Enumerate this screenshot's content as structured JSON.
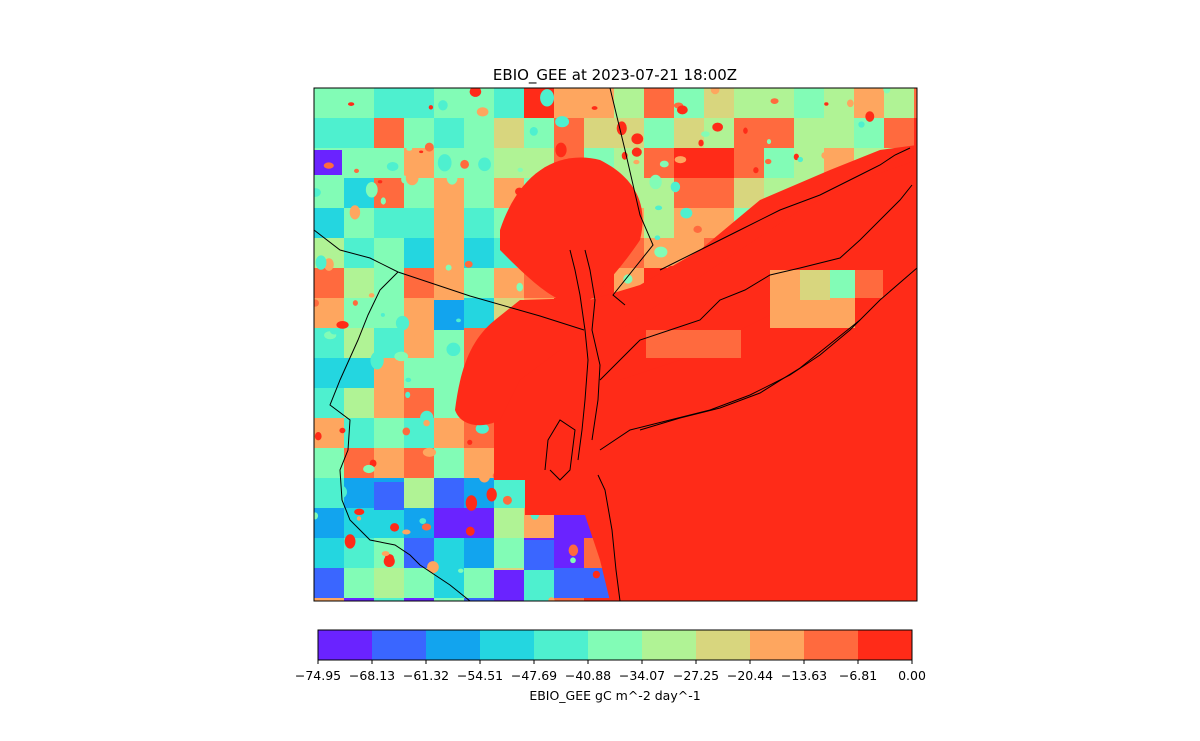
{
  "chart_data": {
    "type": "heatmap",
    "title": "EBIO_GEE at 2023-07-21 18:00Z",
    "colorbar": {
      "label": "EBIO_GEE gC m^-2 day^-1",
      "orientation": "horizontal",
      "placement": "bottom",
      "ticks": [
        "−74.95",
        "−68.13",
        "−61.32",
        "−54.51",
        "−47.69",
        "−40.88",
        "−34.07",
        "−27.25",
        "−20.44",
        "−13.63",
        "−6.81",
        "0.00"
      ],
      "levels": [
        -74.95,
        -68.13,
        -61.32,
        -54.51,
        -47.69,
        -40.88,
        -34.07,
        -27.25,
        -20.44,
        -13.63,
        -6.81,
        0.0
      ],
      "colors": [
        "#6a23ff",
        "#3a66ff",
        "#12a4ee",
        "#24d6e0",
        "#4ef0cf",
        "#82fcb6",
        "#b0f395",
        "#d8d67e",
        "#fea65f",
        "#ff6a3e",
        "#ff2b18"
      ]
    },
    "grid": false,
    "map": {
      "region": "New York City / Long Island / New Jersey",
      "features": [
        "coastlines",
        "state borders"
      ]
    },
    "field_summary": {
      "west": "mixed -47.69 to -13.63 with scattered 0.00 to -6.81 patches",
      "southwest": "lowest values down to -74.95",
      "east_ocean_sound": "0.00 to -6.81 (red)",
      "long_island_north_shore": "-20.44 to -6.81 with some -40.88 to -27.25 cells"
    }
  }
}
